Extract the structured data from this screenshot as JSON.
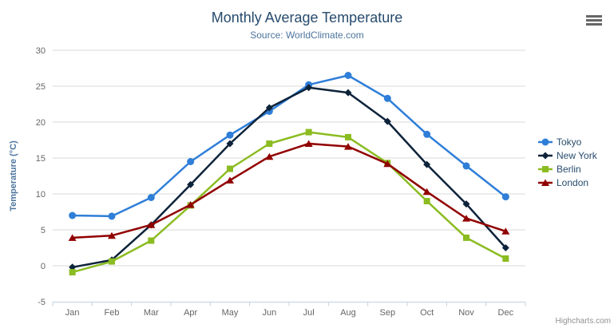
{
  "header": {
    "title": "Monthly Average Temperature",
    "subtitle": "Source: WorldClimate.com"
  },
  "credits": "Highcharts.com",
  "context_menu_icon": "hamburger-icon",
  "colors": {
    "title": "#274b6d",
    "subtitle": "#4d759e",
    "axis_label": "#666666",
    "axis_title": "#4d759e",
    "grid": "#d8d8d8",
    "axis_line": "#c0d0e0",
    "legend_text": "#274b6d",
    "credits": "#909090",
    "background": "#ffffff"
  },
  "chart_data": {
    "type": "line",
    "title": "Monthly Average Temperature",
    "subtitle": "Source: WorldClimate.com",
    "categories": [
      "Jan",
      "Feb",
      "Mar",
      "Apr",
      "May",
      "Jun",
      "Jul",
      "Aug",
      "Sep",
      "Oct",
      "Nov",
      "Dec"
    ],
    "xlabel": "",
    "ylabel": "Temperature (°C)",
    "ylim": [
      -5,
      30
    ],
    "ytick_interval": 5,
    "grid": true,
    "legend_position": "right",
    "series": [
      {
        "name": "Tokyo",
        "color": "#2f7ed8",
        "marker": "circle",
        "values": [
          7.0,
          6.9,
          9.5,
          14.5,
          18.2,
          21.5,
          25.2,
          26.5,
          23.3,
          18.3,
          13.9,
          9.6
        ]
      },
      {
        "name": "New York",
        "color": "#0d233a",
        "marker": "diamond",
        "values": [
          -0.2,
          0.8,
          5.7,
          11.3,
          17.0,
          22.0,
          24.8,
          24.1,
          20.1,
          14.1,
          8.6,
          2.5
        ]
      },
      {
        "name": "Berlin",
        "color": "#8bbc21",
        "marker": "square",
        "values": [
          -0.9,
          0.6,
          3.5,
          8.4,
          13.5,
          17.0,
          18.6,
          17.9,
          14.3,
          9.0,
          3.9,
          1.0
        ]
      },
      {
        "name": "London",
        "color": "#910000",
        "marker": "triangle",
        "values": [
          3.9,
          4.2,
          5.7,
          8.5,
          11.9,
          15.2,
          17.0,
          16.6,
          14.2,
          10.3,
          6.6,
          4.8
        ]
      }
    ]
  }
}
